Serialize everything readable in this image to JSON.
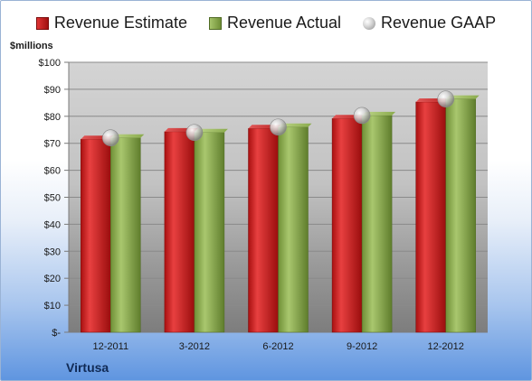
{
  "legend": {
    "estimate": "Revenue Estimate",
    "actual": "Revenue Actual",
    "gaap": "Revenue GAAP"
  },
  "unit_label": "$millions",
  "company": "Virtusa",
  "colors": {
    "estimate": "#c41e1e",
    "actual": "#8aaa4c",
    "gaap": "#b8b8b8"
  },
  "chart_data": {
    "type": "bar",
    "categories": [
      "12-2011",
      "3-2012",
      "6-2012",
      "9-2012",
      "12-2012"
    ],
    "series": [
      {
        "name": "Revenue Estimate",
        "values": [
          71.5,
          74.3,
          75.5,
          79.2,
          85.3
        ]
      },
      {
        "name": "Revenue Actual",
        "values": [
          72.0,
          74.0,
          76.0,
          80.3,
          86.4
        ]
      },
      {
        "name": "Revenue GAAP",
        "values": [
          72.0,
          74.0,
          76.0,
          80.3,
          86.4
        ]
      }
    ],
    "ylabel": "$millions",
    "ylim": [
      0,
      100
    ],
    "ytick_labels": [
      "$-",
      "$10",
      "$20",
      "$30",
      "$40",
      "$50",
      "$60",
      "$70",
      "$80",
      "$90",
      "$100"
    ],
    "grid": true,
    "legend_position": "top"
  }
}
